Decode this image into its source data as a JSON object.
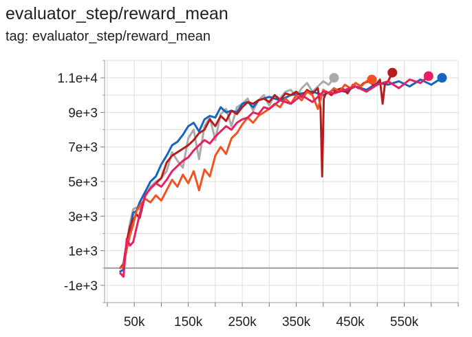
{
  "title": "evaluator_step/reward_mean",
  "subtitle": "tag: evaluator_step/reward_mean",
  "chart_data": {
    "type": "line",
    "title": "evaluator_step/reward_mean",
    "xlabel": "",
    "ylabel": "",
    "xlim": [
      -5000,
      650000
    ],
    "ylim": [
      -2000,
      12000
    ],
    "grid": true,
    "legend": "none",
    "x_ticks": [
      50000,
      150000,
      250000,
      350000,
      450000,
      550000
    ],
    "x_tick_labels": [
      "50k",
      "150k",
      "250k",
      "350k",
      "450k",
      "550k"
    ],
    "y_ticks": [
      -1000,
      1000,
      3000,
      5000,
      7000,
      9000,
      11000
    ],
    "y_tick_labels": [
      "-1e+3",
      "1e+3",
      "3e+3",
      "5e+3",
      "7e+3",
      "9e+3",
      "1.1e+4"
    ],
    "series": [
      {
        "color": "#aaaaaa",
        "x": [
          24000,
          30000,
          36000,
          42000,
          48000,
          54000,
          60000,
          70000,
          80000,
          90000,
          100000,
          110000,
          120000,
          130000,
          140000,
          150000,
          160000,
          170000,
          180000,
          190000,
          200000,
          210000,
          220000,
          230000,
          240000,
          250000,
          260000,
          270000,
          280000,
          290000,
          300000,
          310000,
          320000,
          330000,
          340000,
          350000,
          360000,
          370000,
          380000,
          390000,
          400000,
          410000,
          420000
        ],
        "values": [
          0,
          300,
          1500,
          2600,
          3400,
          3500,
          3400,
          4100,
          4700,
          5000,
          5200,
          5600,
          6700,
          6200,
          5800,
          7500,
          8000,
          6300,
          8200,
          8700,
          7400,
          8900,
          9200,
          8200,
          9300,
          9500,
          9800,
          9100,
          9700,
          10000,
          9400,
          10000,
          9800,
          10200,
          10300,
          9900,
          10400,
          10700,
          10200,
          10500,
          10800,
          10600,
          11000
        ]
      },
      {
        "color": "#1565c0",
        "x": [
          24000,
          30000,
          36000,
          42000,
          48000,
          54000,
          60000,
          70000,
          80000,
          90000,
          100000,
          110000,
          120000,
          130000,
          140000,
          150000,
          160000,
          170000,
          180000,
          190000,
          200000,
          210000,
          220000,
          230000,
          240000,
          250000,
          260000,
          270000,
          280000,
          290000,
          300000,
          320000,
          340000,
          360000,
          380000,
          400000,
          420000,
          440000,
          460000,
          480000,
          500000,
          520000,
          540000,
          560000,
          580000,
          600000,
          610000,
          620000
        ],
        "values": [
          -200,
          -100,
          1500,
          2200,
          3200,
          3300,
          3800,
          4400,
          5000,
          5300,
          6000,
          6500,
          7100,
          7300,
          7700,
          8200,
          8400,
          7900,
          8600,
          8800,
          8700,
          9300,
          9000,
          9100,
          9000,
          9500,
          9600,
          9300,
          9700,
          9800,
          9900,
          9700,
          10000,
          10100,
          10200,
          10000,
          10300,
          10200,
          10500,
          10300,
          10700,
          10600,
          10800,
          10500,
          10900,
          10600,
          10800,
          11000
        ]
      },
      {
        "color": "#b71c1c",
        "x": [
          24000,
          30000,
          36000,
          42000,
          48000,
          54000,
          60000,
          70000,
          80000,
          90000,
          100000,
          110000,
          120000,
          130000,
          140000,
          150000,
          160000,
          170000,
          180000,
          190000,
          200000,
          210000,
          220000,
          230000,
          240000,
          250000,
          260000,
          270000,
          280000,
          290000,
          300000,
          310000,
          320000,
          330000,
          340000,
          350000,
          360000,
          370000,
          380000,
          390000,
          395000,
          398000,
          401000,
          406000,
          415000,
          425000,
          435000,
          445000,
          455000,
          465000,
          475000,
          485000,
          495000,
          505000,
          510000,
          514000,
          520000,
          528000
        ],
        "values": [
          0,
          200,
          1500,
          2400,
          2800,
          3100,
          2900,
          4200,
          4600,
          4900,
          5200,
          6100,
          6500,
          6700,
          6900,
          7100,
          7400,
          7800,
          8000,
          8600,
          8200,
          8800,
          8500,
          9100,
          8900,
          9300,
          9600,
          9500,
          9700,
          9800,
          9600,
          10000,
          9700,
          10100,
          10000,
          10200,
          9900,
          10300,
          10100,
          10400,
          9200,
          5300,
          9800,
          10200,
          10000,
          10300,
          10400,
          10100,
          10600,
          10400,
          10700,
          10800,
          10500,
          10900,
          9500,
          10600,
          10800,
          11300
        ]
      },
      {
        "color": "#f4511e",
        "x": [
          24000,
          30000,
          36000,
          42000,
          48000,
          54000,
          60000,
          70000,
          80000,
          90000,
          100000,
          110000,
          120000,
          130000,
          140000,
          150000,
          160000,
          170000,
          180000,
          190000,
          200000,
          210000,
          220000,
          230000,
          240000,
          250000,
          260000,
          270000,
          280000,
          290000,
          300000,
          310000,
          320000,
          330000,
          340000,
          350000,
          360000,
          370000,
          380000,
          390000,
          400000,
          410000,
          420000,
          430000,
          440000,
          450000,
          460000,
          470000,
          480000,
          490000
        ],
        "values": [
          0,
          100,
          1100,
          1900,
          2500,
          3300,
          3600,
          4000,
          3800,
          4200,
          3900,
          4500,
          5100,
          4700,
          5400,
          4900,
          5600,
          4500,
          5700,
          5300,
          6500,
          7000,
          6600,
          7500,
          7800,
          8300,
          8700,
          8400,
          8800,
          9000,
          9200,
          9500,
          9300,
          9800,
          9500,
          10000,
          9700,
          10200,
          10000,
          9200,
          10300,
          10100,
          10400,
          10200,
          10600,
          10400,
          10700,
          10500,
          10800,
          10900
        ]
      },
      {
        "color": "#e91e63",
        "x": [
          24000,
          30000,
          36000,
          42000,
          48000,
          54000,
          60000,
          70000,
          80000,
          90000,
          100000,
          110000,
          120000,
          130000,
          140000,
          150000,
          160000,
          170000,
          180000,
          190000,
          200000,
          210000,
          220000,
          230000,
          240000,
          250000,
          260000,
          270000,
          280000,
          290000,
          300000,
          320000,
          340000,
          360000,
          380000,
          400000,
          420000,
          440000,
          460000,
          480000,
          500000,
          520000,
          540000,
          560000,
          580000,
          595000
        ],
        "values": [
          -300,
          -500,
          1700,
          1300,
          1500,
          2300,
          3100,
          4200,
          4600,
          4900,
          4700,
          5100,
          5600,
          5900,
          6200,
          6400,
          6800,
          7100,
          7400,
          7200,
          7600,
          7900,
          8200,
          8000,
          8400,
          8600,
          8700,
          9000,
          8900,
          9300,
          9200,
          9700,
          9500,
          10000,
          9600,
          10200,
          10100,
          10300,
          10500,
          10200,
          10600,
          10800,
          10400,
          10900,
          10700,
          11100
        ]
      }
    ]
  }
}
